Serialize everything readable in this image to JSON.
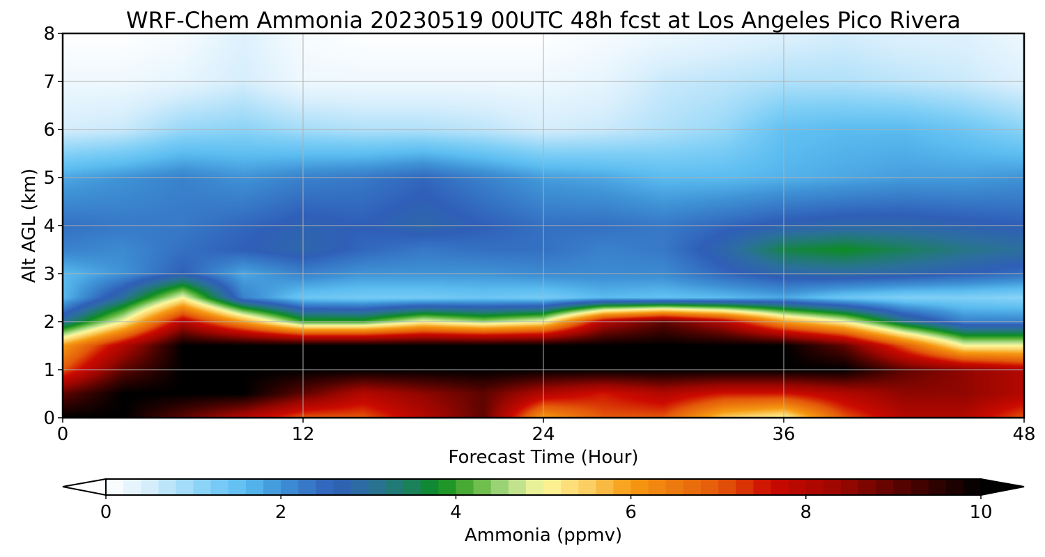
{
  "chart_data": {
    "type": "heatmap",
    "title": "WRF-Chem Ammonia  20230519 00UTC 48h fcst at Los Angeles Pico Rivera",
    "xlabel": "Forecast Time (Hour)",
    "ylabel": "Alt AGL (km)",
    "xlim": [
      0,
      48
    ],
    "ylim": [
      0,
      8
    ],
    "xticks": [
      "0",
      "12",
      "24",
      "36",
      "48"
    ],
    "yticks": [
      "0",
      "1",
      "2",
      "3",
      "4",
      "5",
      "6",
      "7",
      "8"
    ],
    "grid": true,
    "x": [
      0,
      3,
      6,
      9,
      12,
      15,
      18,
      21,
      24,
      27,
      30,
      33,
      36,
      39,
      42,
      45,
      48
    ],
    "y": [
      0,
      0.5,
      1,
      1.5,
      2,
      2.5,
      3,
      3.5,
      4,
      5,
      6,
      7,
      8
    ],
    "values": [
      [
        10,
        10,
        9,
        8,
        7,
        7,
        8,
        9,
        6,
        7,
        7,
        5.5,
        5,
        7,
        8,
        8,
        7
      ],
      [
        9,
        10,
        10,
        10,
        9,
        8,
        8.5,
        9,
        8,
        7.5,
        8,
        7.5,
        7.5,
        8,
        8.5,
        8.5,
        8
      ],
      [
        7,
        9,
        10,
        10,
        10,
        10,
        10,
        10,
        10,
        10,
        10,
        10,
        10,
        10,
        9,
        8.5,
        8
      ],
      [
        6,
        8,
        10,
        10,
        10,
        10,
        10,
        10,
        10,
        10,
        10,
        10,
        10,
        9,
        7,
        5,
        5
      ],
      [
        3,
        5,
        8,
        6,
        4,
        4,
        5,
        4.5,
        5,
        8,
        9,
        8,
        6,
        5,
        3.2,
        2.2,
        2.2
      ],
      [
        1.6,
        3,
        5,
        2.2,
        1.4,
        1.3,
        1.3,
        1.4,
        1.3,
        1.6,
        1.5,
        1.6,
        1.8,
        1.4,
        1.2,
        1.2,
        1.1
      ],
      [
        1.6,
        2,
        2.6,
        1.8,
        2.2,
        2,
        2,
        2,
        2.1,
        2.1,
        2.1,
        2.5,
        2.8,
        2.9,
        2.8,
        2.6,
        2.4
      ],
      [
        2.2,
        2.1,
        2.4,
        2.6,
        2.8,
        2.5,
        2.3,
        2.4,
        2.4,
        2.2,
        2.3,
        2.8,
        3.6,
        3.8,
        3.5,
        3.2,
        3
      ],
      [
        2.4,
        2.3,
        2.3,
        2.5,
        2.7,
        2.6,
        2.8,
        2.6,
        2.4,
        2.4,
        2.3,
        2.5,
        2.7,
        2.8,
        2.8,
        2.7,
        2.6
      ],
      [
        1.8,
        2,
        2.2,
        2,
        2.2,
        2.3,
        2.5,
        2.2,
        1.9,
        1.8,
        1.6,
        1.6,
        1.7,
        1.8,
        1.9,
        1.9,
        2
      ],
      [
        0.5,
        0.6,
        1,
        1.1,
        0.9,
        0.8,
        0.8,
        0.7,
        0.5,
        0.6,
        0.8,
        1,
        1.5,
        1.6,
        1.6,
        1.4,
        1.1
      ],
      [
        0.2,
        0.2,
        0.3,
        0.5,
        0.2,
        0.2,
        0.2,
        0.2,
        0.2,
        0.3,
        0.6,
        0.7,
        0.8,
        0.8,
        0.7,
        0.6,
        0.4
      ],
      [
        0,
        0,
        0.1,
        0.4,
        0.1,
        0,
        0,
        0,
        0,
        0.1,
        0.2,
        0.3,
        0.4,
        0.5,
        0.4,
        0.4,
        0.2
      ]
    ],
    "colorbar": {
      "label": "Ammonia  (ppmv)",
      "min": 0,
      "max": 10,
      "ticks": [
        "0",
        "2",
        "4",
        "6",
        "8",
        "10"
      ],
      "extend": "both",
      "orientation": "horizontal",
      "location": "bottom"
    },
    "colors": {
      "stops": [
        [
          0,
          "#ffffff"
        ],
        [
          0.5,
          "#d6eefc"
        ],
        [
          1.2,
          "#7fcff6"
        ],
        [
          1.6,
          "#5bbcf0"
        ],
        [
          2.0,
          "#3f93d6"
        ],
        [
          2.6,
          "#2f5fb8"
        ],
        [
          3.0,
          "#2c6f9e"
        ],
        [
          3.4,
          "#1f7d6a"
        ],
        [
          3.8,
          "#0d8c22"
        ],
        [
          4.2,
          "#5cb43a"
        ],
        [
          4.6,
          "#aedc8a"
        ],
        [
          5.0,
          "#fdf89c"
        ],
        [
          5.5,
          "#fbcf63"
        ],
        [
          6.0,
          "#f69a12"
        ],
        [
          7.0,
          "#e45a0a"
        ],
        [
          7.6,
          "#cc0a00"
        ],
        [
          8.4,
          "#9a0600"
        ],
        [
          9.2,
          "#4a0300"
        ],
        [
          10,
          "#000000"
        ]
      ],
      "frame": "#000000",
      "grid": "#b0b0b0"
    }
  }
}
